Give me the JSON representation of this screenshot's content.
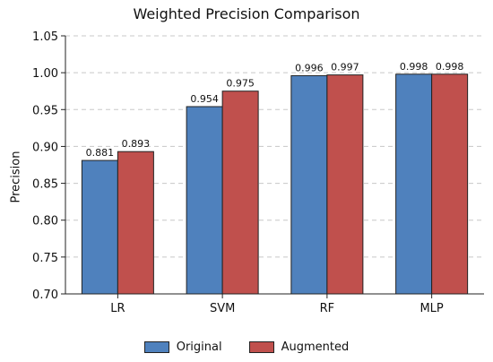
{
  "colors": {
    "original": "#4f81bd",
    "augmented": "#c0504d"
  },
  "chart_data": {
    "type": "bar",
    "title": "Weighted Precision Comparison",
    "xlabel": "",
    "ylabel": "Precision",
    "ylim": [
      0.7,
      1.05
    ],
    "yticks": [
      "0.70",
      "0.75",
      "0.80",
      "0.85",
      "0.90",
      "0.95",
      "1.00",
      "1.05"
    ],
    "grid": true,
    "legend_position": "bottom",
    "categories": [
      "LR",
      "SVM",
      "RF",
      "MLP"
    ],
    "series": [
      {
        "name": "Original",
        "values": [
          0.881,
          0.954,
          0.996,
          0.998
        ],
        "labels": [
          "0.881",
          "0.954",
          "0.996",
          "0.998"
        ]
      },
      {
        "name": "Augmented",
        "values": [
          0.893,
          0.975,
          0.997,
          0.998
        ],
        "labels": [
          "0.893",
          "0.975",
          "0.997",
          "0.998"
        ]
      }
    ]
  }
}
